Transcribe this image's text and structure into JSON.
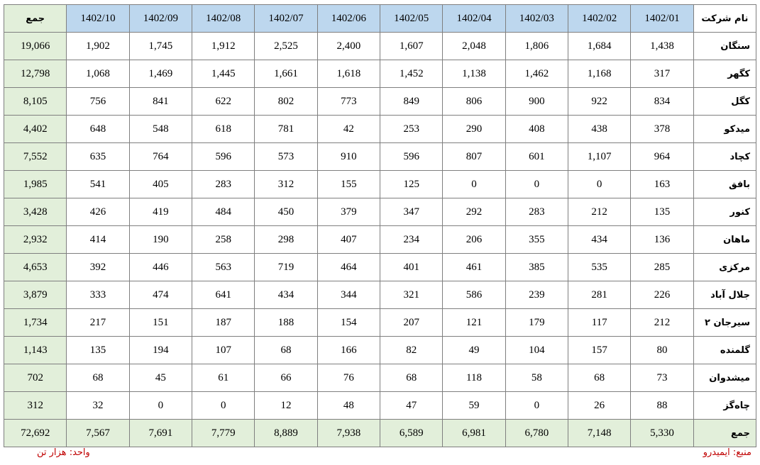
{
  "table": {
    "header": [
      "نام شرکت",
      "1402/01",
      "1402/02",
      "1402/03",
      "1402/04",
      "1402/05",
      "1402/06",
      "1402/07",
      "1402/08",
      "1402/09",
      "1402/10",
      "جمع"
    ],
    "rows": [
      [
        "سنگان",
        "1,438",
        "1,684",
        "1,806",
        "2,048",
        "1,607",
        "2,400",
        "2,525",
        "1,912",
        "1,745",
        "1,902",
        "19,066"
      ],
      [
        "کگهر",
        "317",
        "1,168",
        "1,462",
        "1,138",
        "1,452",
        "1,618",
        "1,661",
        "1,445",
        "1,469",
        "1,068",
        "12,798"
      ],
      [
        "کگل",
        "834",
        "922",
        "900",
        "806",
        "849",
        "773",
        "802",
        "622",
        "841",
        "756",
        "8,105"
      ],
      [
        "میدکو",
        "378",
        "438",
        "408",
        "290",
        "253",
        "42",
        "781",
        "618",
        "548",
        "648",
        "4,402"
      ],
      [
        "کچاد",
        "964",
        "1,107",
        "601",
        "807",
        "596",
        "910",
        "573",
        "596",
        "764",
        "635",
        "7,552"
      ],
      [
        "بافق",
        "163",
        "0",
        "0",
        "0",
        "125",
        "155",
        "312",
        "283",
        "405",
        "541",
        "1,985"
      ],
      [
        "کنور",
        "135",
        "212",
        "283",
        "292",
        "347",
        "379",
        "450",
        "484",
        "419",
        "426",
        "3,428"
      ],
      [
        "ماهان",
        "136",
        "434",
        "355",
        "206",
        "234",
        "407",
        "298",
        "258",
        "190",
        "414",
        "2,932"
      ],
      [
        "مرکزی",
        "285",
        "535",
        "385",
        "461",
        "401",
        "464",
        "719",
        "563",
        "446",
        "392",
        "4,653"
      ],
      [
        "جلال آباد",
        "226",
        "281",
        "239",
        "586",
        "321",
        "344",
        "434",
        "641",
        "474",
        "333",
        "3,879"
      ],
      [
        "سیرجان ۲",
        "212",
        "117",
        "179",
        "121",
        "207",
        "154",
        "188",
        "187",
        "151",
        "217",
        "1,734"
      ],
      [
        "گلمنده",
        "80",
        "157",
        "104",
        "49",
        "82",
        "166",
        "68",
        "107",
        "194",
        "135",
        "1,143"
      ],
      [
        "میشدوان",
        "73",
        "68",
        "58",
        "118",
        "68",
        "76",
        "66",
        "61",
        "45",
        "68",
        "702"
      ],
      [
        "چاه‌گز",
        "88",
        "26",
        "0",
        "59",
        "47",
        "48",
        "12",
        "0",
        "0",
        "32",
        "312"
      ],
      [
        "جمع",
        "5,330",
        "7,148",
        "6,780",
        "6,981",
        "6,589",
        "7,938",
        "8,889",
        "7,779",
        "7,691",
        "7,567",
        "72,692"
      ]
    ]
  },
  "footer": {
    "source": "منبع: ایمیدرو",
    "unit": "واحد: هزار تن"
  }
}
